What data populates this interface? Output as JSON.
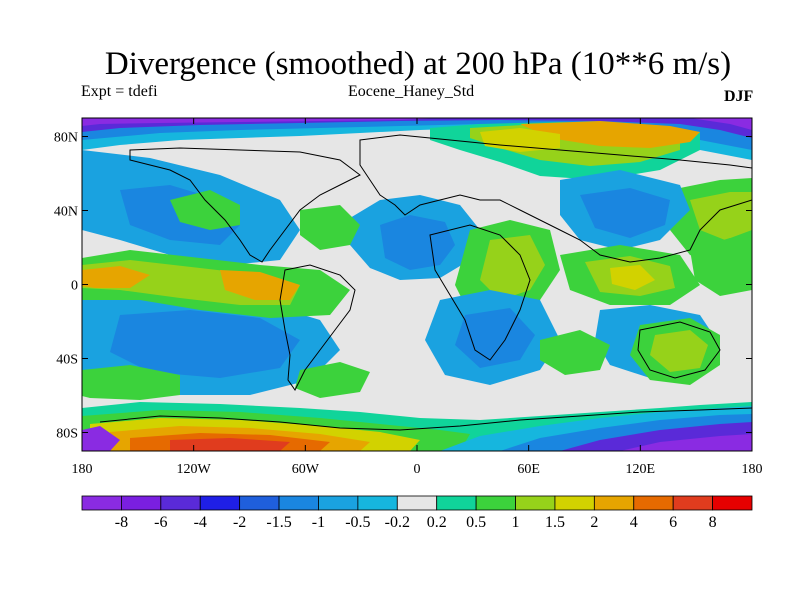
{
  "title": "Divergence (smoothed) at 200 hPa (10**6 m/s)",
  "subtitle_left": "Expt = tdefi",
  "subtitle_center": "Eocene_Haney_Std",
  "subtitle_right": "DJF",
  "map": {
    "lon_range": [
      -180,
      180
    ],
    "lat_range": [
      -90,
      90
    ],
    "lat_ticks": [
      {
        "value": 80,
        "label": "80N"
      },
      {
        "value": 40,
        "label": "40N"
      },
      {
        "value": 0,
        "label": "0"
      },
      {
        "value": -40,
        "label": "40S"
      },
      {
        "value": -80,
        "label": "80S"
      }
    ],
    "lon_ticks": [
      {
        "value": -180,
        "label": "180"
      },
      {
        "value": -120,
        "label": "120W"
      },
      {
        "value": -60,
        "label": "60W"
      },
      {
        "value": 0,
        "label": "0"
      },
      {
        "value": 60,
        "label": "60E"
      },
      {
        "value": 120,
        "label": "120E"
      },
      {
        "value": 180,
        "label": "180"
      }
    ]
  },
  "colorbar": {
    "levels": [
      "-8",
      "-6",
      "-4",
      "-2",
      "-1.5",
      "-1",
      "-0.5",
      "-0.2",
      "0.2",
      "0.5",
      "1",
      "1.5",
      "2",
      "4",
      "6",
      "8"
    ],
    "colors": [
      "#8a2be2",
      "#7a1fe0",
      "#5a2ad8",
      "#1f1fe6",
      "#1f5fdc",
      "#1a86e0",
      "#1aa2e0",
      "#16b6de",
      "#e6e6e6",
      "#10d49a",
      "#3cd23c",
      "#96d21a",
      "#d2d200",
      "#e6a500",
      "#e66a00",
      "#e03c1e",
      "#e60000"
    ]
  }
}
